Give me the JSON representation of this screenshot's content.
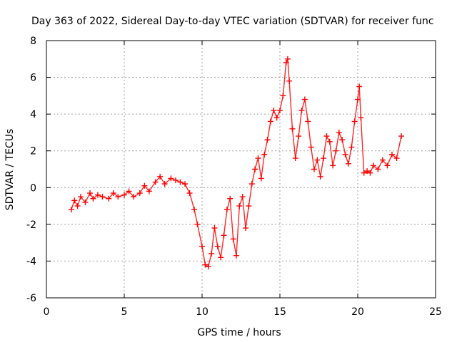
{
  "chart_data": {
    "type": "scatter",
    "title": "Day 363 of 2022, Sidereal Day-to-day VTEC variation (SDTVAR) for receiver func",
    "xlabel": "GPS time / hours",
    "ylabel": "SDTVAR / TECUs",
    "xlim": [
      0,
      25
    ],
    "ylim": [
      -6,
      8
    ],
    "xticks": [
      0,
      5,
      10,
      15,
      20,
      25
    ],
    "yticks": [
      -6,
      -4,
      -2,
      0,
      2,
      4,
      6,
      8
    ],
    "grid": true,
    "marker": "+",
    "color": "#ff0000",
    "series": [
      {
        "name": "SDTVAR",
        "x": [
          1.6,
          1.8,
          2.0,
          2.2,
          2.5,
          2.8,
          3.0,
          3.3,
          3.6,
          4.0,
          4.3,
          4.6,
          5.0,
          5.3,
          5.6,
          6.0,
          6.3,
          6.6,
          7.0,
          7.3,
          7.6,
          8.0,
          8.3,
          8.6,
          8.9,
          9.2,
          9.5,
          9.7,
          10.0,
          10.2,
          10.4,
          10.6,
          10.8,
          11.0,
          11.2,
          11.4,
          11.6,
          11.8,
          12.0,
          12.2,
          12.4,
          12.6,
          12.8,
          13.0,
          13.2,
          13.4,
          13.6,
          13.8,
          14.0,
          14.2,
          14.4,
          14.6,
          14.8,
          15.0,
          15.2,
          15.4,
          15.5,
          15.6,
          15.8,
          16.0,
          16.2,
          16.4,
          16.6,
          16.8,
          17.0,
          17.2,
          17.4,
          17.6,
          17.8,
          18.0,
          18.2,
          18.4,
          18.6,
          18.8,
          19.0,
          19.2,
          19.4,
          19.6,
          19.8,
          20.0,
          20.1,
          20.2,
          20.4,
          20.6,
          20.8,
          21.0,
          21.3,
          21.6,
          21.9,
          22.2,
          22.5,
          22.8
        ],
        "y": [
          -1.2,
          -0.7,
          -1.0,
          -0.5,
          -0.8,
          -0.3,
          -0.6,
          -0.4,
          -0.5,
          -0.6,
          -0.3,
          -0.5,
          -0.4,
          -0.2,
          -0.5,
          -0.3,
          0.1,
          -0.2,
          0.3,
          0.6,
          0.2,
          0.5,
          0.4,
          0.3,
          0.2,
          -0.3,
          -1.2,
          -2.0,
          -3.2,
          -4.2,
          -4.3,
          -3.6,
          -2.2,
          -3.2,
          -3.8,
          -2.6,
          -1.2,
          -0.6,
          -2.8,
          -3.7,
          -1.0,
          -0.5,
          -2.2,
          -1.0,
          0.2,
          1.0,
          1.6,
          0.5,
          1.8,
          2.6,
          3.6,
          4.2,
          3.8,
          4.2,
          5.0,
          6.8,
          7.0,
          5.8,
          3.2,
          1.6,
          2.8,
          4.2,
          4.8,
          3.6,
          2.2,
          1.0,
          1.5,
          0.6,
          1.6,
          2.8,
          2.5,
          1.2,
          2.0,
          3.0,
          2.6,
          1.8,
          1.3,
          2.2,
          3.6,
          4.8,
          5.5,
          3.8,
          0.8,
          0.9,
          0.8,
          1.2,
          1.0,
          1.5,
          1.2,
          1.8,
          1.6,
          2.8
        ]
      }
    ]
  }
}
